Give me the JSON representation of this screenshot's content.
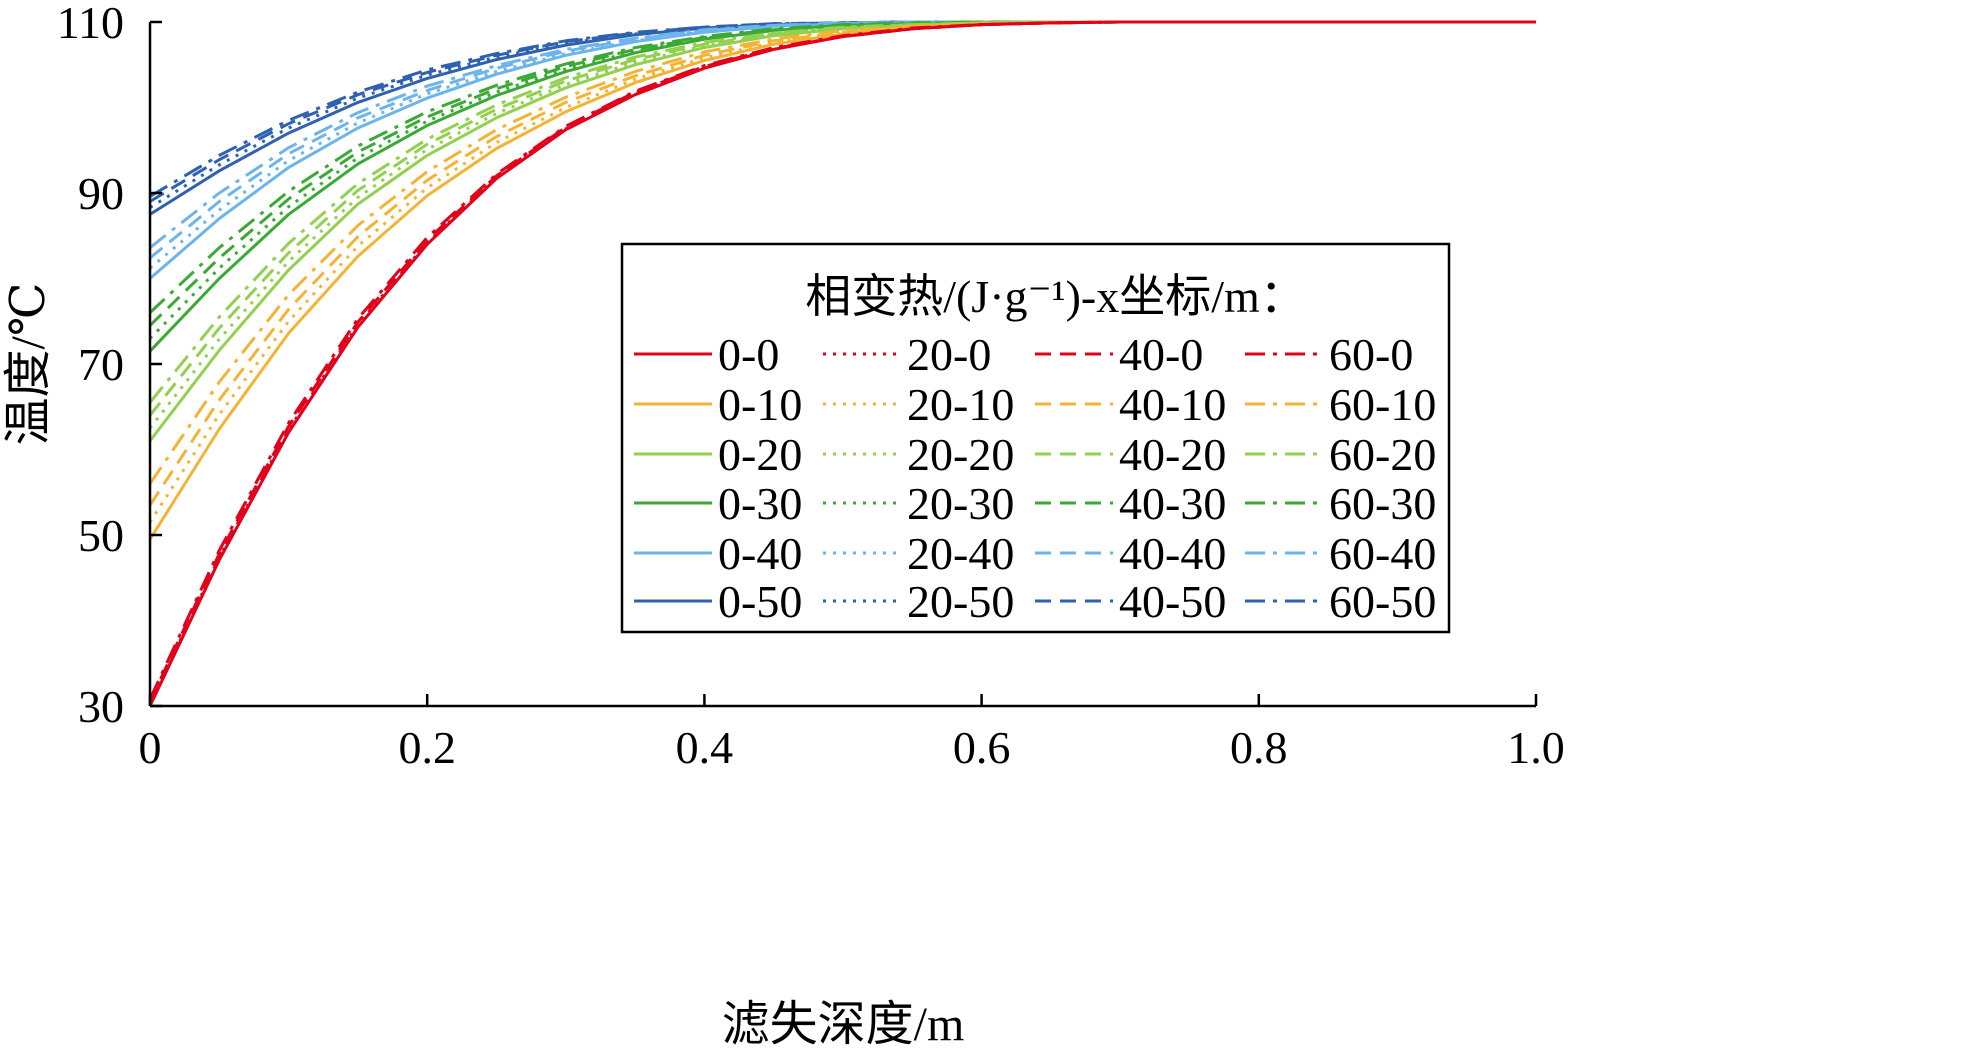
{
  "chart_data": {
    "type": "line",
    "title": "",
    "xlabel": "滤失深度/m",
    "ylabel": "温度/℃",
    "xlim": [
      0,
      1.0
    ],
    "ylim": [
      30,
      110
    ],
    "x_ticks": [
      0,
      0.2,
      0.4,
      0.6,
      0.8,
      1.0
    ],
    "x_tick_labels": [
      "0",
      "0.2",
      "0.4",
      "0.6",
      "0.8",
      "1.0"
    ],
    "y_ticks": [
      30,
      50,
      70,
      90,
      110
    ],
    "y_tick_labels": [
      "30",
      "50",
      "70",
      "90",
      "110"
    ],
    "grid": false,
    "legend_title": "相变热/(J·g⁻¹)-x坐标/m：",
    "legend_position": "center-right",
    "x": [
      0,
      0.05,
      0.1,
      0.15,
      0.2,
      0.25,
      0.3,
      0.35,
      0.4,
      0.45,
      0.5,
      0.55,
      0.6,
      0.65,
      0.7,
      0.8,
      0.9,
      1.0
    ],
    "series": [
      {
        "name": "0-0",
        "color": "#e2001a",
        "dash": "solid",
        "values": [
          30.0,
          47.1,
          62.0,
          74.3,
          84.0,
          91.7,
          97.4,
          101.5,
          104.6,
          106.8,
          108.3,
          109.2,
          109.7,
          109.9,
          110.0,
          110.0,
          110.0,
          110.0
        ]
      },
      {
        "name": "20-0",
        "color": "#e2001a",
        "dash": "dot",
        "values": [
          30.2,
          47.4,
          62.3,
          74.6,
          84.2,
          91.8,
          97.5,
          101.6,
          104.7,
          106.9,
          108.3,
          109.2,
          109.7,
          109.9,
          110.0,
          110.0,
          110.0,
          110.0
        ]
      },
      {
        "name": "40-0",
        "color": "#e2001a",
        "dash": "dash",
        "values": [
          30.5,
          47.8,
          62.7,
          74.9,
          84.5,
          92.0,
          97.7,
          101.8,
          104.8,
          106.9,
          108.3,
          109.2,
          109.7,
          109.9,
          110.0,
          110.0,
          110.0,
          110.0
        ]
      },
      {
        "name": "60-0",
        "color": "#e2001a",
        "dash": "dashdot",
        "values": [
          30.8,
          48.2,
          63.1,
          75.3,
          84.8,
          92.2,
          97.8,
          101.9,
          104.9,
          107.0,
          108.4,
          109.3,
          109.7,
          109.9,
          110.0,
          110.0,
          110.0,
          110.0
        ]
      },
      {
        "name": "0-10",
        "color": "#f5b335",
        "dash": "solid",
        "values": [
          49.5,
          62.4,
          73.6,
          82.6,
          89.7,
          95.2,
          99.5,
          102.9,
          105.5,
          107.4,
          108.6,
          109.4,
          109.8,
          109.9,
          110.0,
          110.0,
          110.0,
          110.0
        ]
      },
      {
        "name": "20-10",
        "color": "#f5b335",
        "dash": "dot",
        "values": [
          51.5,
          64.1,
          75.0,
          83.8,
          90.6,
          95.9,
          100.0,
          103.3,
          105.8,
          107.6,
          108.7,
          109.4,
          109.8,
          109.9,
          110.0,
          110.0,
          110.0,
          110.0
        ]
      },
      {
        "name": "40-10",
        "color": "#f5b335",
        "dash": "dash",
        "values": [
          53.5,
          65.8,
          76.4,
          84.9,
          91.5,
          96.6,
          100.6,
          103.7,
          106.1,
          107.8,
          108.8,
          109.5,
          109.8,
          109.9,
          110.0,
          110.0,
          110.0,
          110.0
        ]
      },
      {
        "name": "60-10",
        "color": "#f5b335",
        "dash": "dashdot",
        "values": [
          56.0,
          67.9,
          78.1,
          86.2,
          92.5,
          97.4,
          101.2,
          104.2,
          106.5,
          108.0,
          109.0,
          109.5,
          109.8,
          109.9,
          110.0,
          110.0,
          110.0,
          110.0
        ]
      },
      {
        "name": "0-20",
        "color": "#92d050",
        "dash": "solid",
        "values": [
          61.0,
          71.6,
          81.0,
          88.7,
          94.4,
          98.8,
          102.3,
          105.0,
          107.0,
          108.4,
          109.2,
          109.6,
          109.9,
          110.0,
          110.0,
          110.0,
          110.0,
          110.0
        ]
      },
      {
        "name": "20-20",
        "color": "#92d050",
        "dash": "dot",
        "values": [
          62.5,
          72.9,
          82.0,
          89.5,
          95.1,
          99.3,
          102.7,
          105.3,
          107.2,
          108.5,
          109.3,
          109.7,
          109.9,
          110.0,
          110.0,
          110.0,
          110.0,
          110.0
        ]
      },
      {
        "name": "40-20",
        "color": "#92d050",
        "dash": "dash",
        "values": [
          64.0,
          74.2,
          83.0,
          90.3,
          95.7,
          99.8,
          103.1,
          105.6,
          107.4,
          108.6,
          109.3,
          109.7,
          109.9,
          110.0,
          110.0,
          110.0,
          110.0,
          110.0
        ]
      },
      {
        "name": "60-20",
        "color": "#92d050",
        "dash": "dashdot",
        "values": [
          65.5,
          75.5,
          84.1,
          91.1,
          96.3,
          100.3,
          103.5,
          105.9,
          107.6,
          108.7,
          109.4,
          109.7,
          109.9,
          110.0,
          110.0,
          110.0,
          110.0,
          110.0
        ]
      },
      {
        "name": "0-30",
        "color": "#3aaa35",
        "dash": "solid",
        "values": [
          71.5,
          80.0,
          87.5,
          93.4,
          97.9,
          101.4,
          104.2,
          106.4,
          108.0,
          109.0,
          109.6,
          109.8,
          109.9,
          110.0,
          110.0,
          110.0,
          110.0,
          110.0
        ]
      },
      {
        "name": "20-30",
        "color": "#3aaa35",
        "dash": "dot",
        "values": [
          73.0,
          81.2,
          88.4,
          94.1,
          98.4,
          101.8,
          104.5,
          106.6,
          108.1,
          109.1,
          109.6,
          109.8,
          109.9,
          110.0,
          110.0,
          110.0,
          110.0,
          110.0
        ]
      },
      {
        "name": "40-30",
        "color": "#3aaa35",
        "dash": "dash",
        "values": [
          74.5,
          82.4,
          89.3,
          94.8,
          98.9,
          102.2,
          104.8,
          106.8,
          108.2,
          109.1,
          109.6,
          109.8,
          110.0,
          110.0,
          110.0,
          110.0,
          110.0,
          110.0
        ]
      },
      {
        "name": "60-30",
        "color": "#3aaa35",
        "dash": "dashdot",
        "values": [
          76.0,
          83.6,
          90.2,
          95.5,
          99.5,
          102.6,
          105.1,
          107.0,
          108.3,
          109.2,
          109.7,
          109.9,
          110.0,
          110.0,
          110.0,
          110.0,
          110.0,
          110.0
        ]
      },
      {
        "name": "0-40",
        "color": "#6cb4ea",
        "dash": "solid",
        "values": [
          80.0,
          87.0,
          93.0,
          97.6,
          101.1,
          103.9,
          106.1,
          107.7,
          108.8,
          109.5,
          109.8,
          109.9,
          110.0,
          110.0,
          110.0,
          110.0,
          110.0,
          110.0
        ]
      },
      {
        "name": "20-40",
        "color": "#6cb4ea",
        "dash": "dot",
        "values": [
          81.2,
          88.0,
          93.8,
          98.2,
          101.6,
          104.2,
          106.3,
          107.8,
          108.9,
          109.5,
          109.8,
          109.9,
          110.0,
          110.0,
          110.0,
          110.0,
          110.0,
          110.0
        ]
      },
      {
        "name": "40-40",
        "color": "#6cb4ea",
        "dash": "dash",
        "values": [
          82.4,
          89.0,
          94.6,
          98.8,
          102.0,
          104.6,
          106.6,
          108.0,
          109.0,
          109.6,
          109.8,
          110.0,
          110.0,
          110.0,
          110.0,
          110.0,
          110.0,
          110.0
        ]
      },
      {
        "name": "60-40",
        "color": "#6cb4ea",
        "dash": "dashdot",
        "values": [
          83.6,
          90.0,
          95.3,
          99.4,
          102.5,
          104.9,
          106.8,
          108.1,
          109.1,
          109.6,
          109.9,
          110.0,
          110.0,
          110.0,
          110.0,
          110.0,
          110.0,
          110.0
        ]
      },
      {
        "name": "0-50",
        "color": "#2e62b0",
        "dash": "solid",
        "values": [
          87.5,
          92.6,
          97.0,
          100.6,
          103.4,
          105.6,
          107.3,
          108.5,
          109.3,
          109.7,
          109.9,
          110.0,
          110.0,
          110.0,
          110.0,
          110.0,
          110.0,
          110.0
        ]
      },
      {
        "name": "20-50",
        "color": "#2e62b0",
        "dash": "dot",
        "values": [
          88.3,
          93.3,
          97.6,
          101.1,
          103.8,
          105.9,
          107.5,
          108.6,
          109.3,
          109.7,
          109.9,
          110.0,
          110.0,
          110.0,
          110.0,
          110.0,
          110.0,
          110.0
        ]
      },
      {
        "name": "40-50",
        "color": "#2e62b0",
        "dash": "dash",
        "values": [
          89.0,
          93.9,
          98.1,
          101.5,
          104.1,
          106.1,
          107.7,
          108.7,
          109.4,
          109.8,
          109.9,
          110.0,
          110.0,
          110.0,
          110.0,
          110.0,
          110.0,
          110.0
        ]
      },
      {
        "name": "60-50",
        "color": "#2e62b0",
        "dash": "dashdot",
        "values": [
          89.6,
          94.4,
          98.5,
          101.8,
          104.4,
          106.3,
          107.8,
          108.8,
          109.4,
          109.8,
          109.9,
          110.0,
          110.0,
          110.0,
          110.0,
          110.0,
          110.0,
          110.0
        ]
      }
    ]
  }
}
